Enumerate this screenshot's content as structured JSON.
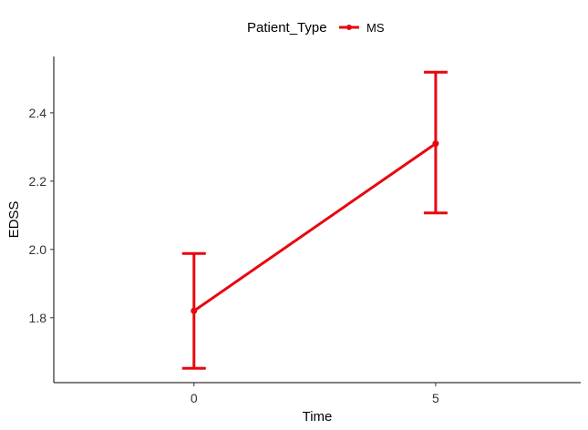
{
  "chart_data": {
    "type": "line",
    "title": "",
    "xlabel": "Time",
    "ylabel": "EDSS",
    "x": [
      0,
      5
    ],
    "xticks": [
      0,
      5
    ],
    "xlim": [
      -2.9,
      8.0
    ],
    "yticks": [
      1.8,
      2.0,
      2.2,
      2.4
    ],
    "ytick_labels": [
      "1.8",
      "2.0",
      "2.2",
      "2.4"
    ],
    "ylim": [
      1.61,
      2.565
    ],
    "grid": false,
    "legend": {
      "title": "Patient_Type",
      "position": "top"
    },
    "series": [
      {
        "name": "MS",
        "color": "#e8070f",
        "values": [
          1.82,
          2.31
        ],
        "error_lower": [
          1.652,
          2.107
        ],
        "error_upper": [
          1.988,
          2.519
        ]
      }
    ]
  }
}
